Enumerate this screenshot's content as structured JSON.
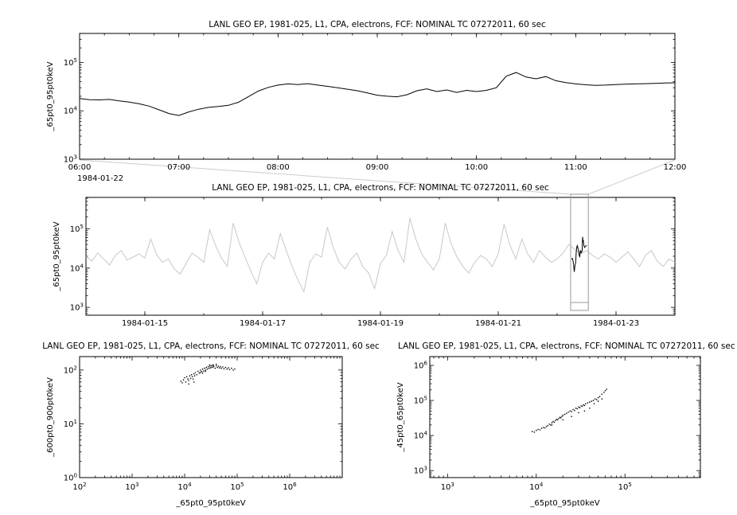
{
  "window": {
    "background": "#ffffff"
  },
  "colors": {
    "primary_line": "#000000",
    "context_line": "#c8c8c8",
    "highlight_line": "#000000",
    "brush": "#999999",
    "connector": "#cccccc",
    "scatter_point": "#000000"
  },
  "chart_data": [
    {
      "id": "zoom-timeseries",
      "type": "line",
      "title": "LANL GEO EP, 1981-025, L1, CPA, electrons, FCF: NOMINAL TC 07272011, 60 sec",
      "ylabel": "_65pt0_95pt0keV",
      "corner_label": "1984-01-22",
      "x": {
        "scale": "linear",
        "range": [
          6,
          12
        ],
        "minor_step": 0.25,
        "ticks": [
          {
            "v": 6,
            "label": "06:00"
          },
          {
            "v": 7,
            "label": "07:00"
          },
          {
            "v": 8,
            "label": "08:00"
          },
          {
            "v": 9,
            "label": "09:00"
          },
          {
            "v": 10,
            "label": "10:00"
          },
          {
            "v": 11,
            "label": "11:00"
          },
          {
            "v": 12,
            "label": "12:00"
          }
        ]
      },
      "y": {
        "scale": "log",
        "range_exp": [
          3,
          5.6
        ],
        "ticks_exp": [
          3,
          4,
          5
        ]
      },
      "series": [
        {
          "name": "electron-flux-65-95keV-zoom",
          "color": "#000000",
          "x_start": 6.0,
          "x_step": 0.1,
          "y": [
            18000,
            17000,
            16800,
            17200,
            16000,
            15200,
            14000,
            12500,
            10500,
            8800,
            8000,
            9500,
            10800,
            11800,
            12300,
            13000,
            15000,
            19500,
            25500,
            30500,
            34000,
            36000,
            35000,
            36500,
            34000,
            32000,
            30000,
            28000,
            26000,
            23500,
            21000,
            20000,
            19500,
            21500,
            26000,
            28500,
            25000,
            27000,
            24000,
            26500,
            25000,
            26500,
            30000,
            52000,
            62000,
            50000,
            46000,
            51000,
            42000,
            38500,
            36000,
            34500,
            33500,
            34000,
            35000,
            35500,
            36000,
            36500,
            37000,
            37500,
            38000
          ]
        }
      ]
    },
    {
      "id": "context-timeseries",
      "type": "line",
      "title": "LANL GEO EP, 1981-025, L1, CPA, electrons, FCF: NOMINAL TC 07272011, 60 sec",
      "ylabel": "_65pt0_95pt0keV",
      "x": {
        "scale": "linear",
        "range": [
          14,
          24
        ],
        "minor_step": 1,
        "ticks": [
          {
            "v": 15,
            "label": "1984-01-15"
          },
          {
            "v": 17,
            "label": "1984-01-17"
          },
          {
            "v": 19,
            "label": "1984-01-19"
          },
          {
            "v": 21,
            "label": "1984-01-21"
          },
          {
            "v": 23,
            "label": "1984-01-23"
          }
        ]
      },
      "y": {
        "scale": "log",
        "range_exp": [
          2.8,
          5.8
        ],
        "ticks_exp": [
          3,
          4,
          5
        ]
      },
      "series": [
        {
          "name": "electron-flux-65-95keV-context",
          "color": "#c8c8c8",
          "x_start": 14.0,
          "x_step": 0.1,
          "y": [
            20000,
            15000,
            24000,
            17000,
            12000,
            21000,
            28000,
            16000,
            19000,
            23000,
            18000,
            55000,
            22000,
            14000,
            17000,
            9500,
            7000,
            13000,
            24000,
            19000,
            14000,
            95000,
            38000,
            18000,
            11000,
            140000,
            45000,
            19000,
            8500,
            4000,
            14000,
            24000,
            17000,
            75000,
            28000,
            11000,
            5000,
            2500,
            14000,
            23000,
            19000,
            110000,
            33000,
            14000,
            9500,
            17000,
            24000,
            11000,
            7500,
            3000,
            13000,
            21000,
            85000,
            28000,
            14000,
            190000,
            55000,
            23000,
            14000,
            9000,
            17000,
            140000,
            42000,
            19000,
            11000,
            7500,
            14000,
            21000,
            17000,
            11000,
            23000,
            130000,
            38000,
            17000,
            55000,
            23000,
            14000,
            28000,
            19000,
            14000,
            17000,
            24000,
            40000,
            30000,
            23000,
            28000,
            21000,
            17000,
            23000,
            19000,
            14000,
            19000,
            26000,
            17000,
            11000,
            21000,
            28000,
            15000,
            11000,
            17000,
            14000
          ]
        },
        {
          "name": "selected-interval-highlight",
          "color": "#000000",
          "ref": [
            0,
            0
          ],
          "remap_x": [
            22.25,
            22.5
          ]
        }
      ],
      "brush": {
        "x0": 22.23,
        "x1": 22.53
      }
    },
    {
      "id": "scatter-600-900",
      "type": "scatter",
      "title": "LANL GEO EP, 1981-025, L1, CPA, electrons, FCF: NOMINAL TC 07272011, 60 sec",
      "ylabel": "_600pt0_900pt0keV",
      "xlabel": "_65pt0_95pt0keV",
      "x": {
        "scale": "log",
        "range_exp": [
          2,
          7
        ],
        "ticks_exp": [
          2,
          3,
          4,
          5,
          6
        ]
      },
      "y": {
        "scale": "log",
        "range_exp": [
          0,
          2.25
        ],
        "ticks_exp": [
          0,
          1,
          2
        ]
      },
      "points": [
        [
          8500,
          62
        ],
        [
          9000,
          58
        ],
        [
          9500,
          66
        ],
        [
          10000,
          72
        ],
        [
          10500,
          60
        ],
        [
          11000,
          75
        ],
        [
          11500,
          68
        ],
        [
          12000,
          64
        ],
        [
          12500,
          78
        ],
        [
          13000,
          70
        ],
        [
          13500,
          82
        ],
        [
          14000,
          75
        ],
        [
          14500,
          68
        ],
        [
          15000,
          85
        ],
        [
          15500,
          78
        ],
        [
          16000,
          90
        ],
        [
          17000,
          82
        ],
        [
          18000,
          95
        ],
        [
          19000,
          88
        ],
        [
          20000,
          100
        ],
        [
          21000,
          94
        ],
        [
          22000,
          104
        ],
        [
          23000,
          96
        ],
        [
          24000,
          108
        ],
        [
          25000,
          100
        ],
        [
          26000,
          112
        ],
        [
          27000,
          104
        ],
        [
          28000,
          116
        ],
        [
          29000,
          108
        ],
        [
          30000,
          118
        ],
        [
          31000,
          110
        ],
        [
          32000,
          120
        ],
        [
          33000,
          112
        ],
        [
          34000,
          122
        ],
        [
          35000,
          114
        ],
        [
          36000,
          118
        ],
        [
          38000,
          108
        ],
        [
          40000,
          120
        ],
        [
          42000,
          112
        ],
        [
          44000,
          118
        ],
        [
          46000,
          110
        ],
        [
          48000,
          116
        ],
        [
          50000,
          108
        ],
        [
          53000,
          114
        ],
        [
          56000,
          106
        ],
        [
          60000,
          112
        ],
        [
          64000,
          104
        ],
        [
          68000,
          110
        ],
        [
          72000,
          102
        ],
        [
          78000,
          108
        ],
        [
          84000,
          100
        ],
        [
          90000,
          105
        ],
        [
          12000,
          55
        ],
        [
          15000,
          60
        ],
        [
          20000,
          90
        ],
        [
          25000,
          95
        ],
        [
          35000,
          125
        ],
        [
          40000,
          128
        ],
        [
          30000,
          125
        ],
        [
          22000,
          88
        ]
      ]
    },
    {
      "id": "scatter-45-65",
      "type": "scatter",
      "title": "LANL GEO EP, 1981-025, L1, CPA, electrons, FCF: NOMINAL TC 07272011, 60 sec",
      "ylabel": "_45pt0_65pt0keV",
      "xlabel": "_65pt0_95pt0keV",
      "x": {
        "scale": "log",
        "range_exp": [
          2.8,
          5.85
        ],
        "ticks_exp": [
          3,
          4,
          5
        ]
      },
      "y": {
        "scale": "log",
        "range_exp": [
          2.8,
          6.25
        ],
        "ticks_exp": [
          3,
          4,
          5,
          6
        ]
      },
      "points": [
        [
          9000,
          13000
        ],
        [
          9500,
          12500
        ],
        [
          10000,
          14000
        ],
        [
          10500,
          15000
        ],
        [
          11000,
          14500
        ],
        [
          11500,
          16000
        ],
        [
          12000,
          17000
        ],
        [
          12500,
          16500
        ],
        [
          13000,
          18000
        ],
        [
          13500,
          19000
        ],
        [
          14000,
          21000
        ],
        [
          14500,
          20000
        ],
        [
          15000,
          23000
        ],
        [
          15500,
          25000
        ],
        [
          16000,
          24000
        ],
        [
          16500,
          27000
        ],
        [
          17000,
          29000
        ],
        [
          17500,
          28000
        ],
        [
          18000,
          31000
        ],
        [
          18500,
          33000
        ],
        [
          19000,
          32000
        ],
        [
          19500,
          35000
        ],
        [
          20000,
          38000
        ],
        [
          21000,
          40000
        ],
        [
          22000,
          43000
        ],
        [
          23000,
          46000
        ],
        [
          24000,
          50000
        ],
        [
          25000,
          48000
        ],
        [
          26000,
          55000
        ],
        [
          27000,
          52000
        ],
        [
          28000,
          60000
        ],
        [
          29000,
          58000
        ],
        [
          30000,
          65000
        ],
        [
          31000,
          62000
        ],
        [
          32000,
          70000
        ],
        [
          33000,
          68000
        ],
        [
          34000,
          75000
        ],
        [
          35000,
          72000
        ],
        [
          36000,
          80000
        ],
        [
          38000,
          85000
        ],
        [
          40000,
          90000
        ],
        [
          42000,
          95000
        ],
        [
          44000,
          100000
        ],
        [
          46000,
          110000
        ],
        [
          48000,
          105000
        ],
        [
          50000,
          120000
        ],
        [
          52000,
          130000
        ],
        [
          55000,
          150000
        ],
        [
          58000,
          170000
        ],
        [
          60000,
          190000
        ],
        [
          62000,
          210000
        ],
        [
          40000,
          60000
        ],
        [
          35000,
          50000
        ],
        [
          30000,
          45000
        ],
        [
          25000,
          35000
        ],
        [
          20000,
          28000
        ],
        [
          15000,
          20000
        ],
        [
          45000,
          80000
        ],
        [
          50000,
          95000
        ],
        [
          55000,
          110000
        ]
      ]
    }
  ]
}
